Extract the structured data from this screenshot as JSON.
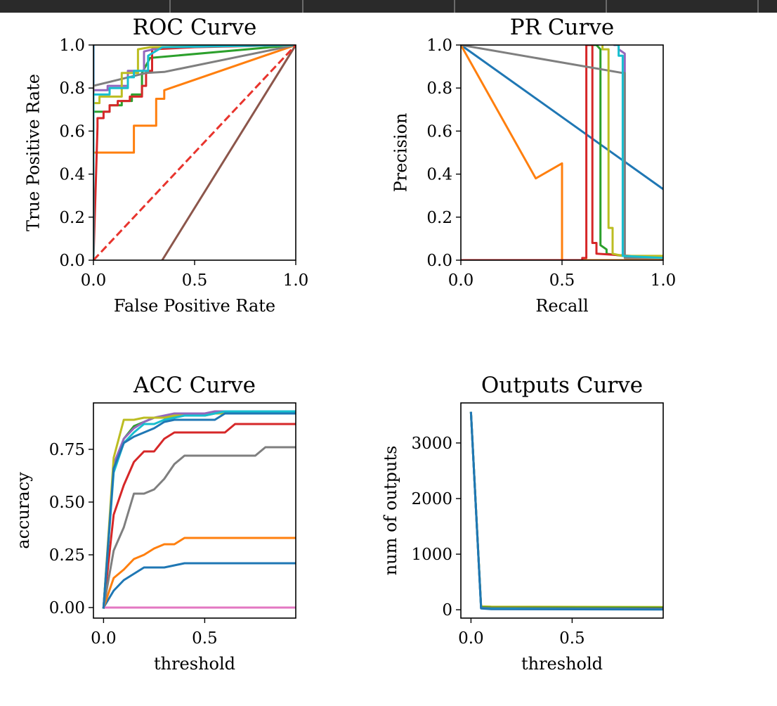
{
  "window": {
    "toolbar_tabs": 5
  },
  "chart_data": [
    {
      "type": "line",
      "title": "ROC Curve",
      "xlabel": "False Positive Rate",
      "ylabel": "True Positive Rate",
      "xlim": [
        0,
        1
      ],
      "ylim": [
        0,
        1
      ],
      "xticks": [
        "0.0",
        "0.5",
        "1.0"
      ],
      "yticks": [
        "0.0",
        "0.2",
        "0.4",
        "0.6",
        "0.8",
        "1.0"
      ],
      "xtick_values": [
        0,
        0.5,
        1.0
      ],
      "ytick_values": [
        0,
        0.2,
        0.4,
        0.6,
        0.8,
        1.0
      ],
      "grid": false,
      "series": [
        {
          "color": "#1f77b4",
          "x": [
            0,
            0,
            0
          ],
          "y": [
            0,
            0.7,
            1.0
          ]
        },
        {
          "color": "#ff7f0e",
          "x": [
            0,
            0,
            0.2,
            0.2,
            0.31,
            0.31,
            0.35,
            0.35,
            1.0
          ],
          "y": [
            0,
            0.5,
            0.5,
            0.625,
            0.625,
            0.75,
            0.75,
            0.79,
            1.0
          ]
        },
        {
          "color": "#2ca02c",
          "x": [
            0,
            0,
            0.08,
            0.08,
            0.14,
            0.14,
            0.19,
            0.19,
            0.24,
            0.24,
            0.28,
            1.0
          ],
          "y": [
            0,
            0.69,
            0.69,
            0.72,
            0.72,
            0.74,
            0.74,
            0.77,
            0.77,
            0.87,
            0.94,
            1.0
          ]
        },
        {
          "color": "#d62728",
          "x": [
            0,
            0.02,
            0.02,
            0.05,
            0.05,
            0.08,
            0.08,
            0.12,
            0.12,
            0.18,
            0.18,
            0.24,
            0.24,
            0.26,
            0.26,
            0.29,
            0.29,
            0.5,
            1.0
          ],
          "y": [
            0,
            0.62,
            0.66,
            0.66,
            0.69,
            0.69,
            0.72,
            0.72,
            0.74,
            0.74,
            0.76,
            0.76,
            0.81,
            0.81,
            0.88,
            0.88,
            0.98,
            0.99,
            1.0
          ]
        },
        {
          "color": "#9467bd",
          "x": [
            0,
            0,
            0.07,
            0.07,
            0.17,
            0.17,
            0.25,
            0.25,
            0.34,
            1.0
          ],
          "y": [
            0,
            0.79,
            0.79,
            0.81,
            0.81,
            0.88,
            0.88,
            0.97,
            0.99,
            1.0
          ]
        },
        {
          "color": "#8c564b",
          "x": [
            0.34,
            1.0
          ],
          "y": [
            0,
            1.0
          ]
        },
        {
          "color": "#e377c2",
          "x": [
            0,
            0
          ],
          "y": [
            0,
            0
          ]
        },
        {
          "color": "#7f7f7f",
          "x": [
            0,
            0,
            0.26,
            0.35,
            1.0
          ],
          "y": [
            0,
            0.81,
            0.87,
            0.875,
            1.0
          ]
        },
        {
          "color": "#bcbd22",
          "x": [
            0,
            0,
            0.03,
            0.03,
            0.14,
            0.14,
            0.22,
            0.22,
            0.28,
            1.0
          ],
          "y": [
            0,
            0.73,
            0.73,
            0.76,
            0.76,
            0.87,
            0.87,
            0.98,
            0.99,
            1.0
          ]
        },
        {
          "color": "#17becf",
          "x": [
            0,
            0,
            0.08,
            0.08,
            0.17,
            0.17,
            0.2,
            0.2,
            0.27,
            0.27,
            0.34,
            1.0
          ],
          "y": [
            0,
            0.77,
            0.77,
            0.8,
            0.8,
            0.85,
            0.85,
            0.88,
            0.88,
            0.95,
            0.99,
            1.0
          ]
        },
        {
          "color": "#e8342d",
          "dashed": true,
          "x": [
            0,
            1.0
          ],
          "y": [
            0,
            1.0
          ]
        }
      ]
    },
    {
      "type": "line",
      "title": "PR Curve",
      "xlabel": "Recall",
      "ylabel": "Precision",
      "xlim": [
        0,
        1
      ],
      "ylim": [
        0,
        1
      ],
      "xticks": [
        "0.0",
        "0.5",
        "1.0"
      ],
      "yticks": [
        "0.0",
        "0.2",
        "0.4",
        "0.6",
        "0.8",
        "1.0"
      ],
      "xtick_values": [
        0,
        0.5,
        1.0
      ],
      "ytick_values": [
        0,
        0.2,
        0.4,
        0.6,
        0.8,
        1.0
      ],
      "grid": false,
      "series": [
        {
          "color": "#1f77b4",
          "x": [
            0,
            1.0
          ],
          "y": [
            1.0,
            0.33
          ]
        },
        {
          "color": "#ff7f0e",
          "x": [
            0,
            0.37,
            0.5,
            0.5,
            1.0
          ],
          "y": [
            1.0,
            0.38,
            0.45,
            0,
            0
          ]
        },
        {
          "color": "#2ca02c",
          "x": [
            0.65,
            0.67,
            0.69,
            0.69,
            0.72,
            0.72,
            0.8,
            1.0
          ],
          "y": [
            1.0,
            1.0,
            0.98,
            0.07,
            0.05,
            0.03,
            0.02,
            0.01
          ]
        },
        {
          "color": "#d62728",
          "x": [
            0,
            0.6,
            0.6,
            0.62,
            0.62,
            0.65,
            0.65,
            0.67,
            0.67,
            1.0
          ],
          "y": [
            0,
            0,
            0.01,
            0.01,
            1.0,
            1.0,
            0.08,
            0.08,
            0.03,
            0.01
          ]
        },
        {
          "color": "#9467bd",
          "x": [
            0.76,
            0.78,
            0.78,
            0.81,
            0.81,
            1.0
          ],
          "y": [
            1.0,
            1.0,
            0.98,
            0.96,
            0.02,
            0.01
          ]
        },
        {
          "color": "#7f7f7f",
          "x": [
            0,
            0.8,
            0.81,
            0.81,
            1.0
          ],
          "y": [
            1.0,
            0.87,
            0.87,
            0.01,
            0.01
          ]
        },
        {
          "color": "#bcbd22",
          "x": [
            0.7,
            0.7,
            0.73,
            0.73,
            0.75,
            0.75,
            0.8,
            1.0
          ],
          "y": [
            1.0,
            0.98,
            0.98,
            0.15,
            0.15,
            0.03,
            0.02,
            0.02
          ]
        },
        {
          "color": "#17becf",
          "x": [
            0.77,
            0.78,
            0.78,
            0.8,
            0.8,
            1.0
          ],
          "y": [
            1.0,
            1.0,
            0.95,
            0.95,
            0.02,
            0.01
          ]
        }
      ]
    },
    {
      "type": "line",
      "title": "ACC Curve",
      "xlabel": "threshold",
      "ylabel": "accuracy",
      "xlim": [
        -0.05,
        0.95
      ],
      "ylim": [
        -0.05,
        0.97
      ],
      "xticks": [
        "0.0",
        "0.5"
      ],
      "yticks": [
        "0.00",
        "0.25",
        "0.50",
        "0.75"
      ],
      "xtick_values": [
        0,
        0.5
      ],
      "ytick_values": [
        0,
        0.25,
        0.5,
        0.75
      ],
      "grid": false,
      "series": [
        {
          "color": "#1f77b4",
          "x": [
            0,
            0.05,
            0.1,
            0.15,
            0.2,
            0.25,
            0.3,
            0.35,
            0.4,
            0.45,
            0.5,
            0.55,
            0.6,
            0.65,
            0.7,
            0.75,
            0.8,
            0.85,
            0.9,
            0.95
          ],
          "y": [
            0,
            0.08,
            0.13,
            0.16,
            0.19,
            0.19,
            0.19,
            0.2,
            0.21,
            0.21,
            0.21,
            0.21,
            0.21,
            0.21,
            0.21,
            0.21,
            0.21,
            0.21,
            0.21,
            0.21
          ]
        },
        {
          "color": "#ff7f0e",
          "x": [
            0,
            0.05,
            0.1,
            0.15,
            0.2,
            0.25,
            0.3,
            0.35,
            0.4,
            0.45,
            0.5,
            0.55,
            0.6,
            0.65,
            0.7,
            0.75,
            0.8,
            0.85,
            0.9,
            0.95
          ],
          "y": [
            0,
            0.14,
            0.18,
            0.23,
            0.25,
            0.28,
            0.3,
            0.3,
            0.33,
            0.33,
            0.33,
            0.33,
            0.33,
            0.33,
            0.33,
            0.33,
            0.33,
            0.33,
            0.33,
            0.33
          ]
        },
        {
          "color": "#2ca02c",
          "x": [
            0,
            0.05,
            0.1,
            0.15,
            0.2,
            0.25,
            0.3,
            0.35,
            0.4,
            0.45,
            0.5,
            0.55,
            0.6,
            0.65,
            0.7,
            0.75,
            0.8,
            0.85,
            0.9,
            0.95
          ],
          "y": [
            0,
            0.66,
            0.8,
            0.86,
            0.88,
            0.9,
            0.9,
            0.91,
            0.92,
            0.92,
            0.92,
            0.92,
            0.92,
            0.92,
            0.92,
            0.92,
            0.92,
            0.92,
            0.92,
            0.92
          ]
        },
        {
          "color": "#d62728",
          "x": [
            0,
            0.05,
            0.1,
            0.15,
            0.2,
            0.25,
            0.3,
            0.35,
            0.4,
            0.45,
            0.5,
            0.55,
            0.6,
            0.65,
            0.7,
            0.75,
            0.8,
            0.85,
            0.9,
            0.95
          ],
          "y": [
            0,
            0.44,
            0.58,
            0.69,
            0.74,
            0.74,
            0.8,
            0.83,
            0.83,
            0.83,
            0.83,
            0.83,
            0.83,
            0.87,
            0.87,
            0.87,
            0.87,
            0.87,
            0.87,
            0.87
          ]
        },
        {
          "color": "#9467bd",
          "x": [
            0,
            0.05,
            0.1,
            0.15,
            0.2,
            0.25,
            0.3,
            0.35,
            0.4,
            0.45,
            0.5,
            0.55,
            0.6,
            0.65,
            0.7,
            0.75,
            0.8,
            0.85,
            0.9,
            0.95
          ],
          "y": [
            0,
            0.68,
            0.8,
            0.85,
            0.88,
            0.9,
            0.91,
            0.92,
            0.92,
            0.92,
            0.92,
            0.93,
            0.93,
            0.93,
            0.93,
            0.93,
            0.93,
            0.93,
            0.93,
            0.93
          ]
        },
        {
          "color": "#e377c2",
          "x": [
            0,
            0.95
          ],
          "y": [
            0,
            0
          ]
        },
        {
          "color": "#7f7f7f",
          "x": [
            0,
            0.05,
            0.1,
            0.15,
            0.2,
            0.25,
            0.3,
            0.35,
            0.4,
            0.45,
            0.5,
            0.55,
            0.6,
            0.65,
            0.7,
            0.75,
            0.8,
            0.85,
            0.9,
            0.95
          ],
          "y": [
            0,
            0.27,
            0.38,
            0.54,
            0.54,
            0.56,
            0.61,
            0.68,
            0.72,
            0.72,
            0.72,
            0.72,
            0.72,
            0.72,
            0.72,
            0.72,
            0.76,
            0.76,
            0.76,
            0.76
          ]
        },
        {
          "color": "#bcbd22",
          "x": [
            0,
            0.05,
            0.1,
            0.15,
            0.2,
            0.25,
            0.3,
            0.35,
            0.4,
            0.45,
            0.5,
            0.55,
            0.6,
            0.65,
            0.7,
            0.75,
            0.8,
            0.85,
            0.9,
            0.95
          ],
          "y": [
            0,
            0.71,
            0.89,
            0.89,
            0.9,
            0.9,
            0.9,
            0.91,
            0.91,
            0.91,
            0.91,
            0.92,
            0.92,
            0.92,
            0.92,
            0.92,
            0.92,
            0.92,
            0.92,
            0.92
          ]
        },
        {
          "color": "#17becf",
          "x": [
            0,
            0.05,
            0.1,
            0.15,
            0.2,
            0.25,
            0.3,
            0.35,
            0.4,
            0.45,
            0.5,
            0.55,
            0.6,
            0.65,
            0.7,
            0.75,
            0.8,
            0.85,
            0.9,
            0.95
          ],
          "y": [
            0,
            0.64,
            0.78,
            0.83,
            0.87,
            0.87,
            0.89,
            0.9,
            0.91,
            0.91,
            0.91,
            0.92,
            0.93,
            0.93,
            0.93,
            0.93,
            0.93,
            0.93,
            0.93,
            0.93
          ]
        },
        {
          "color": "#1f77b4",
          "x": [
            0,
            0.05,
            0.1,
            0.15,
            0.2,
            0.25,
            0.3,
            0.35,
            0.4,
            0.45,
            0.5,
            0.55,
            0.6,
            0.65,
            0.7,
            0.75,
            0.8,
            0.85,
            0.9,
            0.95
          ],
          "y": [
            0,
            0.66,
            0.78,
            0.81,
            0.83,
            0.85,
            0.88,
            0.89,
            0.89,
            0.89,
            0.89,
            0.89,
            0.92,
            0.92,
            0.92,
            0.92,
            0.92,
            0.92,
            0.92,
            0.92
          ]
        }
      ]
    },
    {
      "type": "line",
      "title": "Outputs Curve",
      "xlabel": "threshold",
      "ylabel": "num of outputs",
      "xlim": [
        -0.05,
        0.95
      ],
      "ylim": [
        -150,
        3720
      ],
      "xticks": [
        "0.0",
        "0.5"
      ],
      "yticks": [
        "0",
        "1000",
        "2000",
        "3000"
      ],
      "xtick_values": [
        0,
        0.5
      ],
      "ytick_values": [
        0,
        1000,
        2000,
        3000
      ],
      "grid": false,
      "series": [
        {
          "color": "#bcbd22",
          "x": [
            0,
            0.05,
            0.1,
            0.95
          ],
          "y": [
            3540,
            60,
            55,
            50
          ]
        },
        {
          "color": "#2ca02c",
          "x": [
            0,
            0.05,
            0.1,
            0.95
          ],
          "y": [
            3540,
            45,
            40,
            35
          ]
        },
        {
          "color": "#d62728",
          "x": [
            0,
            0.05,
            0.1,
            0.95
          ],
          "y": [
            3540,
            35,
            28,
            20
          ]
        },
        {
          "color": "#17becf",
          "x": [
            0,
            0.05,
            0.1,
            0.95
          ],
          "y": [
            3540,
            30,
            22,
            12
          ]
        },
        {
          "color": "#1f77b4",
          "x": [
            0,
            0.05,
            0.1,
            0.95
          ],
          "y": [
            3540,
            25,
            12,
            5
          ]
        }
      ]
    }
  ]
}
